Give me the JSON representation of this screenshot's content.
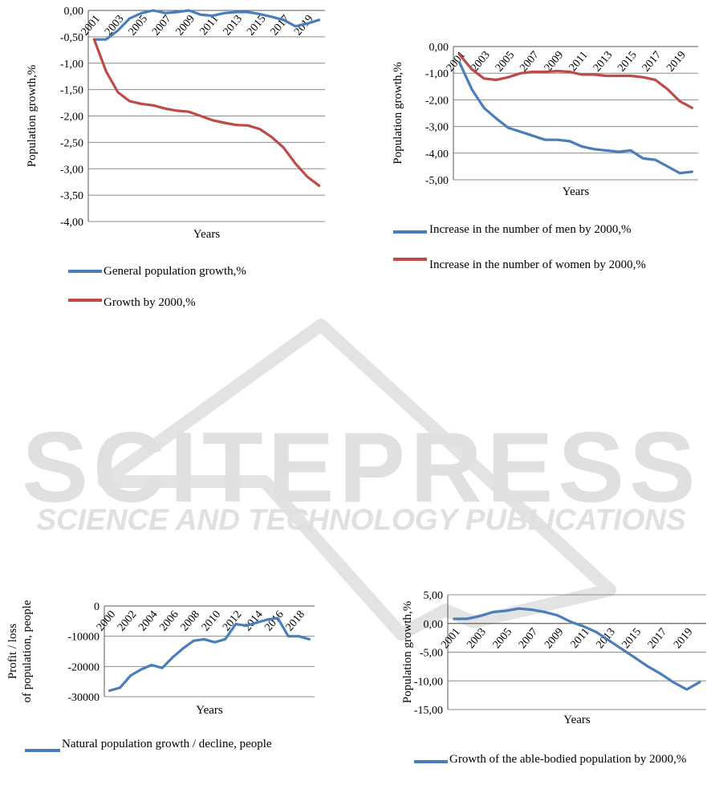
{
  "watermark": {
    "brand": "SCITEPRESS",
    "tagline": "SCIENCE AND TECHNOLOGY PUBLICATIONS",
    "color": "#d9d9d9"
  },
  "colors": {
    "blue": "#4a7ebb",
    "red": "#be4b48",
    "grid": "#8c8c8c",
    "axis": "#595959"
  },
  "chart_data": [
    {
      "type": "line",
      "id": "c1",
      "ylabel": "Population growth,%",
      "xlabel": "Years",
      "ylim": [
        -4,
        0
      ],
      "yticks": [
        "0,00",
        "-0,50",
        "-1,00",
        "-1,50",
        "-2,00",
        "-2,50",
        "-3,00",
        "-3,50",
        "-4,00"
      ],
      "categories": [
        2001,
        2002,
        2003,
        2004,
        2005,
        2006,
        2007,
        2008,
        2009,
        2010,
        2011,
        2012,
        2013,
        2014,
        2015,
        2016,
        2017,
        2018,
        2019,
        2020
      ],
      "xtick_labels": [
        "2001",
        "2003",
        "2005",
        "2007",
        "2009",
        "2011",
        "2013",
        "2015",
        "2017",
        "2019"
      ],
      "series": [
        {
          "name": "General population growth,%",
          "color": "#4a7ebb",
          "values": [
            -0.55,
            -0.55,
            -0.38,
            -0.15,
            -0.05,
            0.0,
            -0.05,
            -0.03,
            0.0,
            -0.08,
            -0.1,
            -0.05,
            -0.03,
            -0.03,
            -0.07,
            -0.12,
            -0.18,
            -0.3,
            -0.25,
            -0.18
          ]
        },
        {
          "name": "Growth by 2000,%",
          "color": "#be4b48",
          "values": [
            -0.55,
            -1.15,
            -1.55,
            -1.72,
            -1.77,
            -1.8,
            -1.86,
            -1.9,
            -1.92,
            -2.0,
            -2.08,
            -2.13,
            -2.17,
            -2.18,
            -2.25,
            -2.4,
            -2.6,
            -2.9,
            -3.15,
            -3.32
          ]
        }
      ]
    },
    {
      "type": "line",
      "id": "c2",
      "ylabel": "Population growth,%",
      "xlabel": "Years",
      "ylim": [
        -5,
        0
      ],
      "yticks": [
        "0,00",
        "-1,00",
        "-2,00",
        "-3,00",
        "-4,00",
        "-5,00"
      ],
      "categories": [
        2001,
        2002,
        2003,
        2004,
        2005,
        2006,
        2007,
        2008,
        2009,
        2010,
        2011,
        2012,
        2013,
        2014,
        2015,
        2016,
        2017,
        2018,
        2019,
        2020
      ],
      "xtick_labels": [
        "2001",
        "2003",
        "2005",
        "2007",
        "2009",
        "2011",
        "2013",
        "2015",
        "2017",
        "2019"
      ],
      "series": [
        {
          "name": "Increase in the number of men by 2000,%",
          "color": "#4a7ebb",
          "values": [
            -0.6,
            -1.6,
            -2.3,
            -2.7,
            -3.05,
            -3.2,
            -3.35,
            -3.5,
            -3.5,
            -3.55,
            -3.75,
            -3.85,
            -3.9,
            -3.95,
            -3.9,
            -4.2,
            -4.25,
            -4.5,
            -4.75,
            -4.7
          ]
        },
        {
          "name": "Increase in the number of women by 2000,%",
          "color": "#be4b48",
          "values": [
            -0.3,
            -0.85,
            -1.2,
            -1.25,
            -1.15,
            -1.0,
            -0.95,
            -0.95,
            -0.92,
            -0.95,
            -1.05,
            -1.05,
            -1.1,
            -1.1,
            -1.1,
            -1.15,
            -1.25,
            -1.6,
            -2.05,
            -2.3
          ]
        }
      ]
    },
    {
      "type": "line",
      "id": "c3",
      "ylabel": "Profit / loss of population, people",
      "xlabel": "Years",
      "ylim": [
        -30000,
        0
      ],
      "yticks": [
        "0",
        "-10000",
        "-20000",
        "-30000"
      ],
      "categories": [
        2000,
        2001,
        2002,
        2003,
        2004,
        2005,
        2006,
        2007,
        2008,
        2009,
        2010,
        2011,
        2012,
        2013,
        2014,
        2015,
        2016,
        2017,
        2018,
        2019
      ],
      "xtick_labels": [
        "2000",
        "2002",
        "2004",
        "2006",
        "2008",
        "2010",
        "2012",
        "2014",
        "2016",
        "2018"
      ],
      "series": [
        {
          "name": "Natural population growth / decline, people",
          "color": "#4a7ebb",
          "values": [
            -28000,
            -27000,
            -23000,
            -21000,
            -19500,
            -20500,
            -17000,
            -14000,
            -11500,
            -11000,
            -12000,
            -11000,
            -6000,
            -6500,
            -5500,
            -4500,
            -4000,
            -10000,
            -10000,
            -11000
          ]
        }
      ]
    },
    {
      "type": "line",
      "id": "c4",
      "ylabel": "Population growth,%",
      "xlabel": "Years",
      "ylim": [
        -15,
        5
      ],
      "yticks": [
        "5,00",
        "0,00",
        "-5,00",
        "-10,00",
        "-15,00"
      ],
      "categories": [
        2001,
        2002,
        2003,
        2004,
        2005,
        2006,
        2007,
        2008,
        2009,
        2010,
        2011,
        2012,
        2013,
        2014,
        2015,
        2016,
        2017,
        2018,
        2019,
        2020
      ],
      "xtick_labels": [
        "2001",
        "2003",
        "2005",
        "2007",
        "2009",
        "2011",
        "2013",
        "2015",
        "2017",
        "2019"
      ],
      "series": [
        {
          "name": "Growth of the able-bodied population by 2000,%",
          "color": "#4a7ebb",
          "values": [
            0.8,
            0.8,
            1.3,
            2.0,
            2.2,
            2.6,
            2.4,
            2.0,
            1.4,
            0.3,
            -0.5,
            -1.5,
            -3.0,
            -4.5,
            -6.0,
            -7.5,
            -8.8,
            -10.3,
            -11.5,
            -10.2
          ]
        }
      ]
    }
  ]
}
